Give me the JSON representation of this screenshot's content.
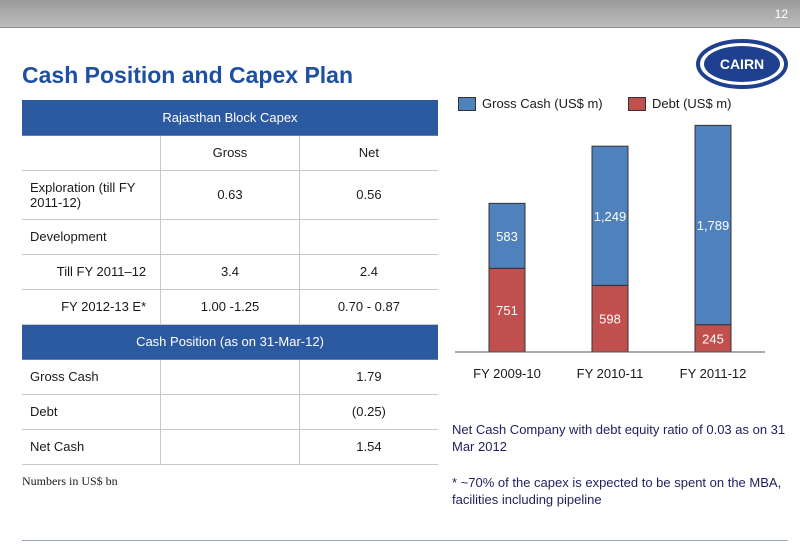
{
  "slide_number": "12",
  "title": "Cash Position and Capex Plan",
  "logo_text": "CAIRN",
  "table": {
    "section1_header": "Rajasthan Block Capex",
    "col_headers": [
      "",
      "Gross",
      "Net"
    ],
    "rows1": [
      {
        "label": "Exploration (till FY 2011-12)",
        "gross": "0.63",
        "net": "0.56"
      },
      {
        "label": "Development",
        "gross": "",
        "net": ""
      },
      {
        "label": "Till FY 2011–12",
        "gross": "3.4",
        "net": "2.4"
      },
      {
        "label": "FY 2012-13 E*",
        "gross": "1.00 -1.25",
        "net": "0.70 - 0.87"
      }
    ],
    "section2_header": "Cash Position (as on 31-Mar-12)",
    "rows2": [
      {
        "label": "Gross Cash",
        "gross": "",
        "net": "1.79"
      },
      {
        "label": "Debt",
        "gross": "",
        "net": "(0.25)"
      },
      {
        "label": "Net Cash",
        "gross": "",
        "net": "1.54"
      }
    ]
  },
  "units_note": "Numbers in US$ bn",
  "chart_data": {
    "type": "bar",
    "stacked": true,
    "categories": [
      "FY 2009-10",
      "FY 2010-11",
      "FY 2011-12"
    ],
    "series": [
      {
        "name": "Debt (US$ m)",
        "values": [
          751,
          598,
          245
        ],
        "color": "#c0504d"
      },
      {
        "name": "Gross Cash (US$ m)",
        "values": [
          583,
          1249,
          1789
        ],
        "color": "#4f81bd"
      }
    ],
    "ylim": [
      0,
      2100
    ],
    "legend_position": "top",
    "grid": false
  },
  "notes": [
    "Net Cash Company with debt equity ratio of 0.03 as on 31 Mar 2012",
    "* ~70% of the capex is expected to be spent on the MBA, facilities including pipeline"
  ]
}
